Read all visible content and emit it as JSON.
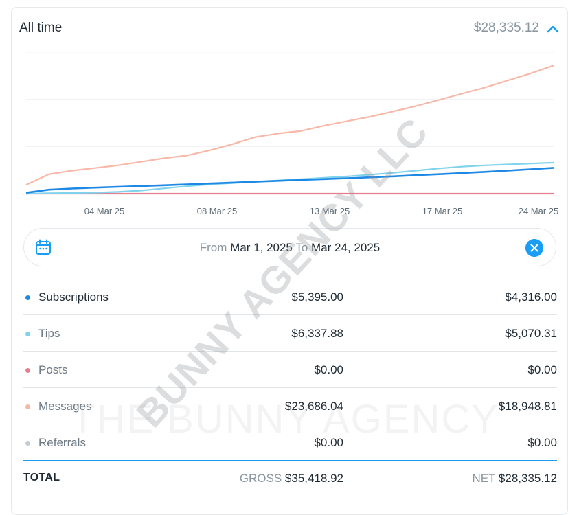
{
  "header": {
    "title": "All time",
    "total": "$28,335.12",
    "collapse_icon": "chevron-up-icon"
  },
  "chart_data": {
    "type": "line",
    "x_ticks": [
      "04 Mar 25",
      "08 Mar 25",
      "13 Mar 25",
      "17 Mar 25",
      "24 Mar 25"
    ],
    "series": [
      {
        "name": "Subscriptions",
        "color": "#1e88e5",
        "values": [
          0.1,
          0.45,
          0.58,
          0.68,
          0.78,
          0.86,
          0.95,
          1.05,
          1.15,
          1.25,
          1.35,
          1.45,
          1.55,
          1.65,
          1.75,
          1.85,
          1.96,
          2.08,
          2.2,
          2.32,
          2.46,
          2.6,
          2.76,
          2.92
        ]
      },
      {
        "name": "Tips",
        "color": "#7fd3ec",
        "values": [
          0.0,
          0.05,
          0.08,
          0.12,
          0.2,
          0.35,
          0.6,
          0.85,
          1.05,
          1.2,
          1.35,
          1.5,
          1.65,
          1.8,
          1.95,
          2.15,
          2.35,
          2.6,
          2.85,
          3.05,
          3.2,
          3.3,
          3.4,
          3.5
        ]
      },
      {
        "name": "Posts",
        "color": "#e57f8e",
        "values": [
          0,
          0,
          0,
          0,
          0,
          0,
          0,
          0,
          0,
          0,
          0,
          0,
          0,
          0,
          0,
          0,
          0,
          0,
          0,
          0,
          0,
          0,
          0,
          0
        ]
      },
      {
        "name": "Messages",
        "color": "#f7b8a8",
        "values": [
          1.0,
          2.2,
          2.6,
          2.9,
          3.2,
          3.6,
          4.0,
          4.3,
          4.9,
          5.6,
          6.4,
          6.8,
          7.1,
          7.7,
          8.2,
          8.7,
          9.3,
          9.9,
          10.6,
          11.3,
          12.0,
          12.8,
          13.6,
          14.5
        ]
      }
    ],
    "grid": true
  },
  "date_range": {
    "from_label": "From",
    "from_value": "Mar 1, 2025",
    "to_label": "To",
    "to_value": "Mar 24, 2025",
    "calendar_icon": "calendar-icon",
    "clear_icon": "close-icon"
  },
  "rows": [
    {
      "name": "Subscriptions",
      "dot": "#1e88e5",
      "gross": "$5,395.00",
      "net": "$4,316.00"
    },
    {
      "name": "Tips",
      "dot": "#7fd3ec",
      "gross": "$6,337.88",
      "net": "$5,070.31"
    },
    {
      "name": "Posts",
      "dot": "#e57f8e",
      "gross": "$0.00",
      "net": "$0.00"
    },
    {
      "name": "Messages",
      "dot": "#f7b8a8",
      "gross": "$23,686.04",
      "net": "$18,948.81"
    },
    {
      "name": "Referrals",
      "dot": "#c5cbd1",
      "gross": "$0.00",
      "net": "$0.00"
    }
  ],
  "total": {
    "label": "TOTAL",
    "gross_label": "GROSS",
    "gross": "$35,418.92",
    "net_label": "NET",
    "net": "$28,335.12"
  },
  "watermark": {
    "diagonal": "BUNNY AGENCY LLC",
    "horizontal": "THE BUNNY AGENCY"
  }
}
